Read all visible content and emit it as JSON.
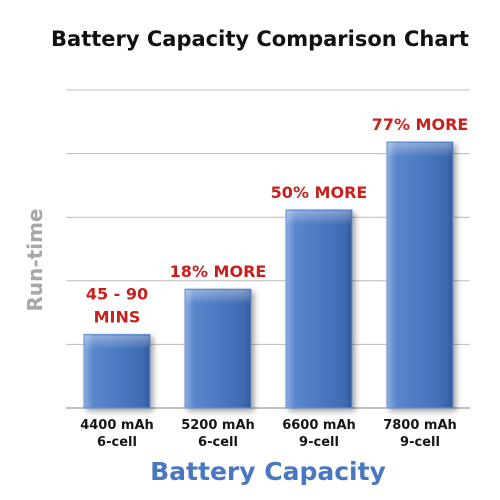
{
  "chart_data": {
    "type": "bar",
    "title": "Battery Capacity Comparison Chart",
    "xlabel": "Battery Capacity",
    "ylabel": "Run-time",
    "categories": [
      [
        "4400 mAh",
        "6-cell"
      ],
      [
        "5200 mAh",
        "6-cell"
      ],
      [
        "6600 mAh",
        "9-cell"
      ],
      [
        "7800 mAh",
        "9-cell"
      ]
    ],
    "values": [
      4400,
      5200,
      6600,
      7800
    ],
    "annotations": [
      [
        "45 - 90",
        "MINS"
      ],
      [
        "18% MORE"
      ],
      [
        "50% MORE"
      ],
      [
        "77% MORE"
      ]
    ],
    "ylim": [
      3100,
      7800
    ],
    "grid": true,
    "colors": {
      "bar": "#4a78c0",
      "bar_edge": "#6d95d3",
      "annotation": "#c8201c",
      "xlabel": "#4a78c0",
      "ylabel": "#a7a7a7",
      "title": "#111111",
      "grid": "#bcbcbc"
    }
  }
}
